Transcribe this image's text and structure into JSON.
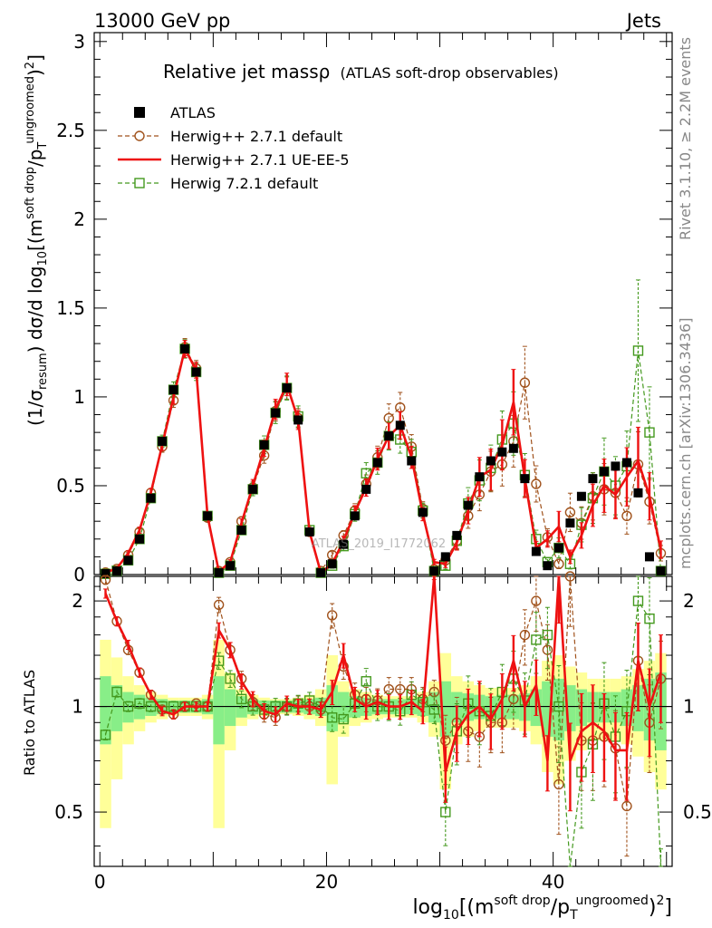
{
  "header": {
    "left": "13000 GeV pp",
    "right": "Jets"
  },
  "side_labels": {
    "rivet": "Rivet 3.1.10, ≥ 2.2M events",
    "mcplots": "mcplots.cern.ch [arXiv:1306.3436]"
  },
  "watermark": "ATLAS_2019_I1772062",
  "main_title": {
    "part1": "Relative jet massρ",
    "part2": "(ATLAS soft-drop observables)"
  },
  "axes": {
    "ylabel_upper": "(1/σresum) dσ/d log10[(m^soft drop/pT^ungroomed)^2]",
    "ylabel_upper_parts": {
      "a": "(1/σ",
      "b": "resum",
      "c": ") dσ/d log",
      "d": "10",
      "e": "[(m",
      "f": "soft drop",
      "g": "/p",
      "h": "T",
      "i": "ungroomed",
      "j": ")",
      "k": "2",
      "l": "]"
    },
    "ylabel_lower": "Ratio to ATLAS",
    "xlabel_parts": {
      "a": "log",
      "b": "10",
      "c": "[(m",
      "d": "soft drop",
      "e": "/p",
      "f": "T",
      "g": "ungroomed",
      "h": ")",
      "i": "2",
      "j": "]"
    },
    "x_ticks": [
      "0",
      "20",
      "40"
    ],
    "y_ticks_upper": [
      "0",
      "0.5",
      "1",
      "1.5",
      "2",
      "2.5",
      "3"
    ],
    "y_ticks_lower": [
      "0.5",
      "1",
      "2"
    ]
  },
  "legend": [
    {
      "key": "atlas",
      "label": "ATLAS",
      "color": "#000000"
    },
    {
      "key": "h271def",
      "label": "Herwig++ 2.7.1 default",
      "color": "#a0521c"
    },
    {
      "key": "h271ue",
      "label": "Herwig++ 2.7.1 UE-EE-5",
      "color": "#ee1111"
    },
    {
      "key": "h721",
      "label": "Herwig 7.2.1 default",
      "color": "#44991e"
    }
  ],
  "chart_data": {
    "type": "scatter",
    "xlim": [
      -0.5,
      50.5
    ],
    "ylim_upper": [
      0,
      3.05
    ],
    "ylim_lower": [
      0.35,
      2.35
    ],
    "ratio_scale": "log",
    "x": [
      0.5,
      1.5,
      2.5,
      3.5,
      4.5,
      5.5,
      6.5,
      7.5,
      8.5,
      9.5,
      10.5,
      11.5,
      12.5,
      13.5,
      14.5,
      15.5,
      16.5,
      17.5,
      18.5,
      19.5,
      20.5,
      21.5,
      22.5,
      23.5,
      24.5,
      25.5,
      26.5,
      27.5,
      28.5,
      29.5,
      30.5,
      31.5,
      32.5,
      33.5,
      34.5,
      35.5,
      36.5,
      37.5,
      38.5,
      39.5,
      40.5,
      41.5,
      42.5,
      43.5,
      44.5,
      45.5,
      46.5,
      47.5,
      48.5,
      49.5
    ],
    "series": [
      {
        "key": "atlas",
        "name": "ATLAS",
        "values": [
          0.005,
          0.02,
          0.08,
          0.2,
          0.43,
          0.75,
          1.04,
          1.27,
          1.14,
          0.33,
          0.01,
          0.05,
          0.25,
          0.48,
          0.73,
          0.91,
          1.05,
          0.87,
          0.24,
          0.01,
          0.06,
          0.17,
          0.33,
          0.48,
          0.63,
          0.78,
          0.84,
          0.64,
          0.35,
          0.02,
          0.1,
          0.22,
          0.39,
          0.55,
          0.64,
          0.69,
          0.71,
          0.54,
          0.13,
          0.05,
          0.15,
          0.29,
          0.44,
          0.54,
          0.58,
          0.61,
          0.63,
          0.46,
          0.1,
          0.02
        ]
      },
      {
        "key": "h271def",
        "name": "Herwig++ 2.7.1 default",
        "values": [
          0.012,
          0.032,
          0.11,
          0.24,
          0.46,
          0.72,
          0.98,
          1.28,
          1.16,
          0.32,
          0.02,
          0.07,
          0.3,
          0.49,
          0.67,
          0.92,
          1.05,
          0.88,
          0.24,
          0.02,
          0.11,
          0.22,
          0.36,
          0.51,
          0.66,
          0.88,
          0.94,
          0.72,
          0.37,
          0.03,
          0.08,
          0.19,
          0.33,
          0.45,
          0.58,
          0.62,
          0.75,
          1.08,
          0.51,
          0.21,
          0.06,
          0.35,
          0.29,
          0.44,
          0.48,
          0.46,
          0.33,
          0.62,
          0.41,
          0.12
        ]
      },
      {
        "key": "h271ue",
        "name": "Herwig++ 2.7.1 UE-EE-5",
        "values": [
          0.011,
          0.035,
          0.12,
          0.25,
          0.46,
          0.73,
          1.0,
          1.27,
          1.15,
          0.33,
          0.017,
          0.07,
          0.29,
          0.5,
          0.71,
          0.93,
          1.07,
          0.87,
          0.24,
          0.01,
          0.06,
          0.19,
          0.35,
          0.49,
          0.65,
          0.78,
          0.84,
          0.66,
          0.34,
          0.07,
          0.06,
          0.18,
          0.36,
          0.55,
          0.59,
          0.73,
          0.97,
          0.54,
          0.15,
          0.2,
          0.27,
          0.1,
          0.22,
          0.39,
          0.5,
          0.45,
          0.55,
          0.64,
          0.44,
          0.14
        ]
      },
      {
        "key": "h721",
        "name": "Herwig 7.2.1 default",
        "values": [
          0.004,
          0.022,
          0.08,
          0.2,
          0.43,
          0.75,
          1.04,
          1.27,
          1.14,
          0.33,
          0.01,
          0.05,
          0.25,
          0.48,
          0.73,
          0.91,
          1.05,
          0.89,
          0.25,
          0.01,
          0.05,
          0.16,
          0.34,
          0.57,
          0.63,
          0.78,
          0.76,
          0.69,
          0.36,
          0.02,
          0.05,
          0.19,
          0.4,
          0.53,
          0.6,
          0.76,
          0.85,
          0.56,
          0.2,
          0.07,
          0.15,
          0.06,
          0.28,
          0.43,
          0.58,
          0.5,
          0.61,
          1.26,
          0.8,
          0.02
        ]
      }
    ],
    "ratio_series": [
      {
        "key": "h271def",
        "name": "Herwig++ 2.7.1 default",
        "values": [
          2.3,
          1.75,
          1.45,
          1.25,
          1.08,
          0.98,
          0.95,
          1.0,
          1.02,
          1.0,
          1.95,
          1.45,
          1.2,
          1.03,
          0.95,
          0.93,
          1.0,
          1.02,
          1.0,
          0.98,
          1.82,
          1.3,
          1.08,
          1.05,
          1.04,
          1.12,
          1.12,
          1.12,
          1.05,
          1.1,
          0.8,
          0.9,
          0.85,
          0.82,
          0.9,
          0.9,
          1.05,
          1.6,
          2.0,
          1.45,
          0.6,
          2.35,
          0.8,
          0.8,
          0.82,
          0.76,
          0.52,
          1.35,
          0.9,
          1.2
        ]
      },
      {
        "key": "h271ue",
        "name": "Herwig++ 2.7.1 UE-EE-5",
        "values": [
          2.1,
          1.75,
          1.5,
          1.25,
          1.08,
          0.97,
          0.95,
          1.0,
          1.0,
          1.0,
          1.65,
          1.45,
          1.18,
          1.05,
          0.97,
          0.95,
          1.02,
          1.0,
          1.0,
          0.98,
          1.1,
          1.4,
          1.05,
          1.0,
          1.03,
          1.0,
          1.0,
          1.03,
          0.97,
          2.5,
          0.65,
          0.85,
          0.95,
          1.0,
          0.92,
          1.05,
          1.35,
          1.0,
          1.15,
          0.7,
          2.4,
          0.7,
          0.85,
          0.9,
          0.85,
          0.75,
          0.75,
          1.35,
          1.0,
          1.25
        ]
      },
      {
        "key": "h721",
        "name": "Herwig 7.2.1 default",
        "values": [
          0.83,
          1.1,
          1.0,
          1.02,
          1.0,
          1.0,
          1.0,
          1.0,
          1.0,
          1.0,
          1.35,
          1.2,
          1.05,
          1.0,
          0.98,
          1.0,
          1.0,
          1.02,
          1.04,
          1.0,
          0.93,
          0.92,
          1.02,
          1.18,
          1.0,
          1.0,
          0.97,
          1.08,
          1.03,
          0.98,
          0.5,
          0.85,
          1.02,
          0.97,
          0.94,
          1.1,
          1.2,
          1.04,
          1.55,
          1.6,
          1.0,
          0.21,
          0.65,
          0.78,
          1.02,
          0.82,
          0.97,
          2.0,
          1.78,
          0.3
        ]
      }
    ],
    "ratio_bands": {
      "green_half_width": [
        0.22,
        0.15,
        0.1,
        0.08,
        0.06,
        0.05,
        0.04,
        0.04,
        0.04,
        0.05,
        0.22,
        0.12,
        0.07,
        0.05,
        0.04,
        0.04,
        0.04,
        0.04,
        0.05,
        0.06,
        0.15,
        0.1,
        0.07,
        0.06,
        0.05,
        0.05,
        0.05,
        0.05,
        0.06,
        0.1,
        0.18,
        0.1,
        0.09,
        0.08,
        0.07,
        0.08,
        0.08,
        0.09,
        0.12,
        0.18,
        0.2,
        0.15,
        0.12,
        0.1,
        0.1,
        0.1,
        0.12,
        0.15,
        0.2,
        0.25
      ],
      "yellow_half_width": [
        0.55,
        0.38,
        0.22,
        0.15,
        0.1,
        0.08,
        0.06,
        0.06,
        0.06,
        0.08,
        0.55,
        0.25,
        0.12,
        0.08,
        0.06,
        0.05,
        0.05,
        0.06,
        0.08,
        0.12,
        0.4,
        0.18,
        0.12,
        0.1,
        0.08,
        0.07,
        0.07,
        0.07,
        0.1,
        0.18,
        0.42,
        0.22,
        0.18,
        0.15,
        0.13,
        0.13,
        0.13,
        0.15,
        0.22,
        0.35,
        0.4,
        0.3,
        0.25,
        0.2,
        0.2,
        0.2,
        0.22,
        0.28,
        0.35,
        0.42
      ]
    }
  }
}
